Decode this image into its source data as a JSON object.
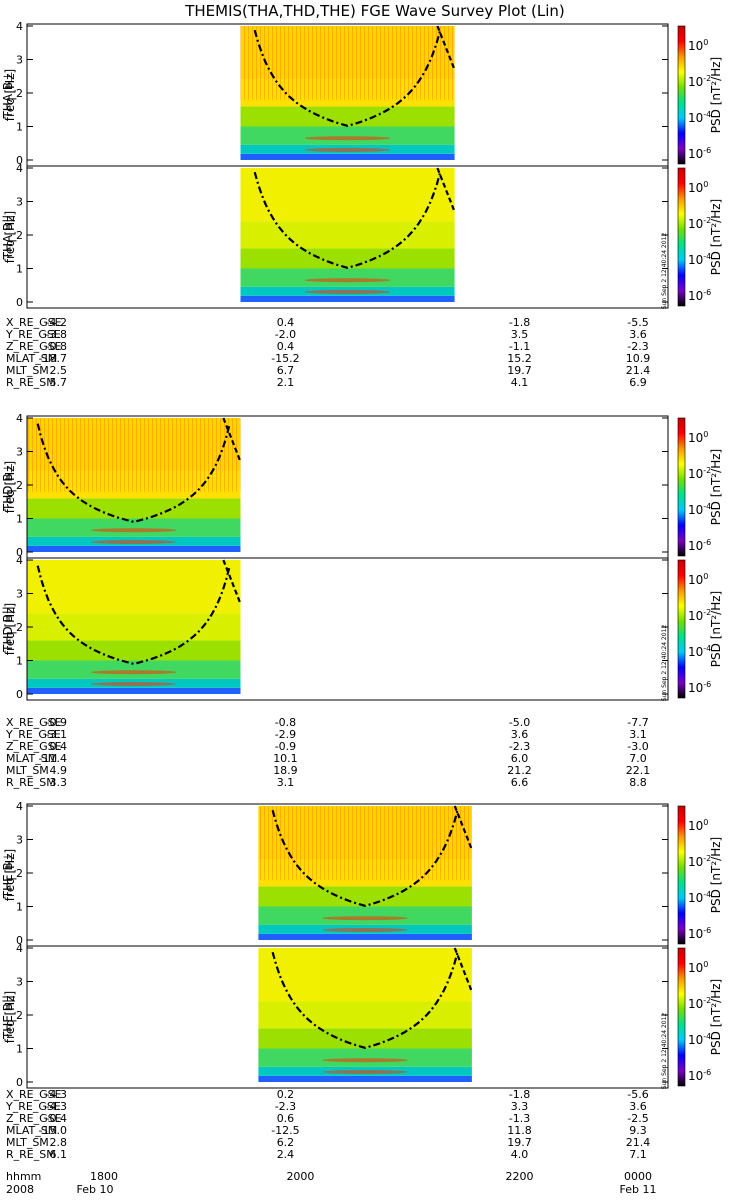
{
  "chart_data": {
    "type": "heatmap",
    "title": "THEMIS(THA,THD,THE) FGE Wave Survey Plot (Lin)",
    "colorbar": {
      "label": "PSD [nT²/Hz]",
      "scale": "log",
      "tick_labels": [
        {
          "base": "10",
          "exp": "0"
        },
        {
          "base": "10",
          "exp": "-2"
        },
        {
          "base": "10",
          "exp": "-4"
        },
        {
          "base": "10",
          "exp": "-6"
        }
      ],
      "colors": [
        "#000000",
        "#7a00c8",
        "#0000ff",
        "#00c8ff",
        "#00e08c",
        "#70e000",
        "#ffff00",
        "#ff9600",
        "#ff0000",
        "#c80000"
      ]
    },
    "stamp": "Sun Sep  2 12:40:24 2012",
    "x_axis": {
      "row_labels": [
        "hhmm",
        "2008"
      ],
      "tick_labels": [
        "1800",
        "2000",
        "2200",
        "0000"
      ],
      "date_labels": [
        "Feb 10",
        "Feb 11"
      ]
    },
    "probes": [
      {
        "name": "THA",
        "panels": [
          {
            "label": "THA B⊥",
            "ylabel": "freq [Hz]",
            "yticks": [
              "0",
              "1",
              "2",
              "3",
              "4"
            ],
            "ylim": [
              0,
              4
            ],
            "data_start": 0.333,
            "data_end": 0.667,
            "min_cutoff": 1.02,
            "min_cutoff_hz": 0.68
          },
          {
            "label": "THA B||",
            "ylabel": "freq [Hz]",
            "yticks": [
              "0",
              "1",
              "2",
              "3",
              "4"
            ],
            "ylim": [
              0,
              4
            ],
            "data_start": 0.333,
            "data_end": 0.667,
            "min_cutoff": 1.02,
            "min_cutoff_hz": 0.68
          }
        ],
        "ephemeris": [
          {
            "name": "X_RE_GSE",
            "values": [
              "-4.2",
              "0.4",
              "-1.8",
              "-5.5"
            ]
          },
          {
            "name": "Y_RE_GSE",
            "values": [
              "-3.8",
              "-2.0",
              "3.5",
              "3.6"
            ]
          },
          {
            "name": "Z_RE_GSE",
            "values": [
              "-0.8",
              "0.4",
              "-1.1",
              "-2.3"
            ]
          },
          {
            "name": "MLAT_SM",
            "values": [
              "-18.7",
              "-15.2",
              "15.2",
              "10.9"
            ]
          },
          {
            "name": "MLT_SM",
            "values": [
              "2.5",
              "6.7",
              "19.7",
              "21.4"
            ]
          },
          {
            "name": "R_RE_SM",
            "values": [
              "5.7",
              "2.1",
              "4.1",
              "6.9"
            ]
          }
        ]
      },
      {
        "name": "THD",
        "panels": [
          {
            "label": "THD B⊥",
            "ylabel": "freq [Hz]",
            "yticks": [
              "0",
              "1",
              "2",
              "3",
              "4"
            ],
            "ylim": [
              0,
              4
            ],
            "data_start": 0.0,
            "data_end": 0.333,
            "min_cutoff": 0.9,
            "min_cutoff_hz": 0.55
          },
          {
            "label": "THD B||",
            "ylabel": "freq [Hz]",
            "yticks": [
              "0",
              "1",
              "2",
              "3",
              "4"
            ],
            "ylim": [
              0,
              4
            ],
            "data_start": 0.0,
            "data_end": 0.333,
            "min_cutoff": 0.9,
            "min_cutoff_hz": 0.55
          }
        ],
        "ephemeris": [
          {
            "name": "X_RE_GSE",
            "values": [
              "-0.9",
              "-0.8",
              "-5.0",
              "-7.7"
            ]
          },
          {
            "name": "Y_RE_GSE",
            "values": [
              "-3.1",
              "-2.9",
              "3.6",
              "3.1"
            ]
          },
          {
            "name": "Z_RE_GSE",
            "values": [
              "0.4",
              "-0.9",
              "-2.3",
              "-3.0"
            ]
          },
          {
            "name": "MLAT_SM",
            "values": [
              "-11.4",
              "10.1",
              "6.0",
              "7.0"
            ]
          },
          {
            "name": "MLT_SM",
            "values": [
              "4.9",
              "18.9",
              "21.2",
              "22.1"
            ]
          },
          {
            "name": "R_RE_SM",
            "values": [
              "3.3",
              "3.1",
              "6.6",
              "8.8"
            ]
          }
        ]
      },
      {
        "name": "THE",
        "panels": [
          {
            "label": "THE B⊥",
            "ylabel": "freq [Hz]",
            "yticks": [
              "0",
              "1",
              "2",
              "3",
              "4"
            ],
            "ylim": [
              0,
              4
            ],
            "data_start": 0.361,
            "data_end": 0.694,
            "min_cutoff": 1.02,
            "min_cutoff_hz": 0.5
          },
          {
            "label": "THE B||",
            "ylabel": "freq [Hz]",
            "yticks": [
              "0",
              "1",
              "2",
              "3",
              "4"
            ],
            "ylim": [
              0,
              4
            ],
            "data_start": 0.361,
            "data_end": 0.694,
            "min_cutoff": 1.02,
            "min_cutoff_hz": 0.5
          }
        ],
        "ephemeris": [
          {
            "name": "X_RE_GSE",
            "values": [
              "-4.3",
              "0.2",
              "-1.8",
              "-5.6"
            ]
          },
          {
            "name": "Y_RE_GSE",
            "values": [
              "-4.3",
              "-2.3",
              "3.3",
              "3.6"
            ]
          },
          {
            "name": "Z_RE_GSE",
            "values": [
              "-0.4",
              "0.6",
              "-1.3",
              "-2.5"
            ]
          },
          {
            "name": "MLAT_SM",
            "values": [
              "-15.0",
              "-12.5",
              "11.8",
              "9.3"
            ]
          },
          {
            "name": "MLT_SM",
            "values": [
              "2.8",
              "6.2",
              "19.7",
              "21.4"
            ]
          },
          {
            "name": "R_RE_SM",
            "values": [
              "6.1",
              "2.4",
              "4.0",
              "7.1"
            ]
          }
        ]
      }
    ]
  }
}
